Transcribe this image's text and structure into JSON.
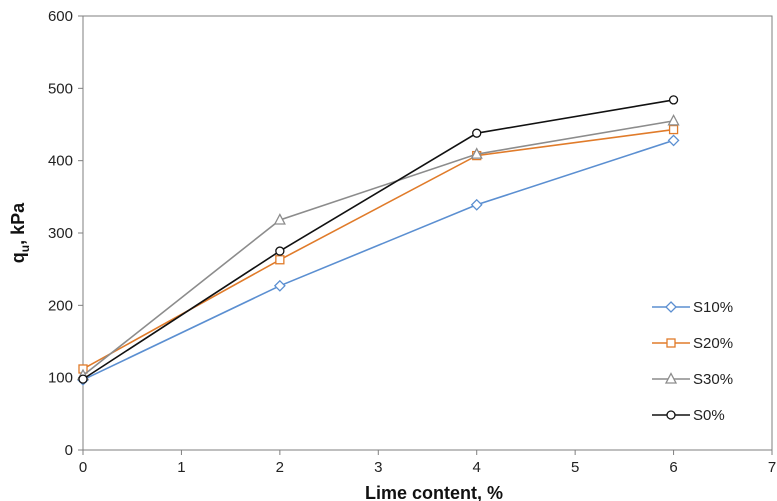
{
  "chart_data": {
    "type": "line",
    "title": "",
    "xlabel": "Lime content, %",
    "ylabel_main": "q",
    "ylabel_sub": "u",
    "ylabel_rest": ", kPa",
    "xlim": [
      0,
      7
    ],
    "ylim": [
      0,
      600
    ],
    "xticks": [
      0,
      1,
      2,
      3,
      4,
      5,
      6,
      7
    ],
    "yticks": [
      0,
      100,
      200,
      300,
      400,
      500,
      600
    ],
    "grid": false,
    "legend_position": "bottom-right",
    "x": [
      0,
      2,
      4,
      6
    ],
    "series": [
      {
        "name": "S10%",
        "color": "#5b8fd1",
        "marker": "diamond",
        "values": [
          97,
          227,
          339,
          428
        ]
      },
      {
        "name": "S20%",
        "color": "#e07b2a",
        "marker": "square",
        "values": [
          112,
          263,
          407,
          443
        ]
      },
      {
        "name": "S30%",
        "color": "#8c8c8c",
        "marker": "triangle",
        "values": [
          103,
          318,
          409,
          455
        ]
      },
      {
        "name": "S0%",
        "color": "#111111",
        "marker": "circle",
        "values": [
          98,
          275,
          438,
          484
        ]
      }
    ]
  }
}
